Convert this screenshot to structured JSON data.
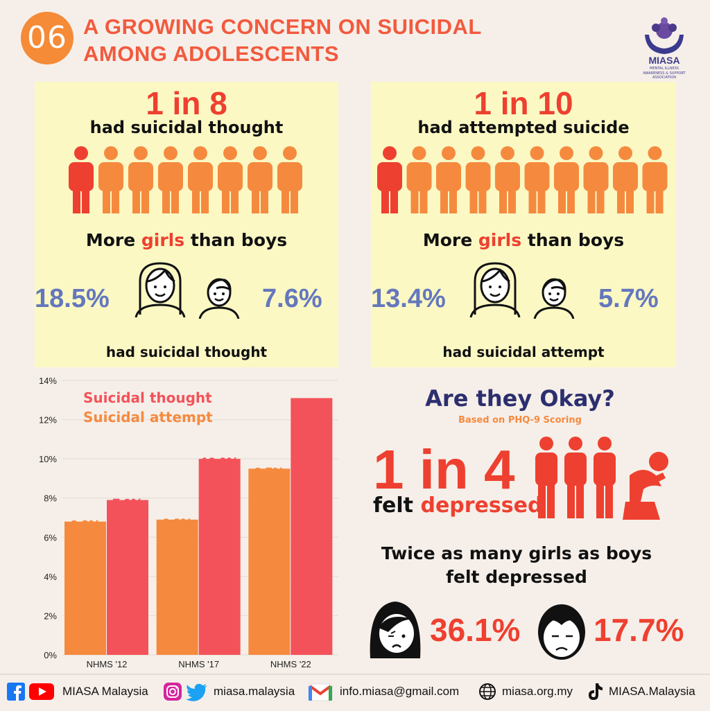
{
  "header": {
    "badge": "06",
    "title_line1": "A GROWING CONCERN ON SUICIDAL",
    "title_line2": "AMONG ADOLESCENTS"
  },
  "logo": {
    "name": "MIASA",
    "tagline_line1": "MENTAL ILLNESS",
    "tagline_line2": "AWARENESS & SUPPORT ASSOCIATION"
  },
  "panel_thought": {
    "ratio": "1 in 8",
    "caption": "had suicidal thought",
    "figures_total": 8,
    "figures_highlight": 1,
    "compare_pre": "More ",
    "compare_girls": "girls",
    "compare_post": " than boys",
    "girls_pct": "18.5%",
    "boys_pct": "7.6%",
    "footer": "had suicidal thought"
  },
  "panel_attempt": {
    "ratio": "1 in 10",
    "caption": "had attempted suicide",
    "figures_total": 10,
    "figures_highlight": 1,
    "compare_pre": "More ",
    "compare_girls": "girls",
    "compare_post": " than boys",
    "girls_pct": "13.4%",
    "boys_pct": "5.7%",
    "footer": "had suicidal attempt"
  },
  "depression": {
    "question": "Are they Okay?",
    "basis": "Based on PHQ-9 Scoring",
    "ratio": "1 in 4",
    "felt": "felt ",
    "depressed": "depressed",
    "twice_line1": "Twice as many girls as boys",
    "twice_line2": "felt depressed",
    "girls_pct": "36.1%",
    "boys_pct": "17.7%"
  },
  "colors": {
    "thought": "#f4525a",
    "attempt": "#f58a3f",
    "accent": "#ee4030",
    "pct_blue": "#6477bd"
  },
  "chart_data": {
    "type": "bar",
    "categories": [
      "NHMS '12",
      "NHMS '17",
      "NHMS '22"
    ],
    "series": [
      {
        "name": "Suicidal attempt",
        "values": [
          6.8,
          6.9,
          9.5
        ],
        "labels": [
          "6.8%",
          "6.9%",
          "9.5%"
        ]
      },
      {
        "name": "Suicidal thought",
        "values": [
          7.9,
          10.0,
          13.1
        ],
        "labels": [
          "7.9%",
          "10.0%",
          ""
        ]
      }
    ],
    "ylim": [
      0,
      14
    ],
    "yticks": [
      "0%",
      "2%",
      "4%",
      "6%",
      "8%",
      "10%",
      "12%",
      "14%"
    ],
    "legend_thought": "Suicidal thought",
    "legend_attempt": "Suicidal attempt",
    "legend_position": "top-left",
    "grid": true
  },
  "footer": {
    "youtube": "MIASA Malaysia",
    "twitter": "miasa.malaysia",
    "email": "info.miasa@gmail.com",
    "web": "miasa.org.my",
    "tiktok": "MIASA.Malaysia"
  }
}
